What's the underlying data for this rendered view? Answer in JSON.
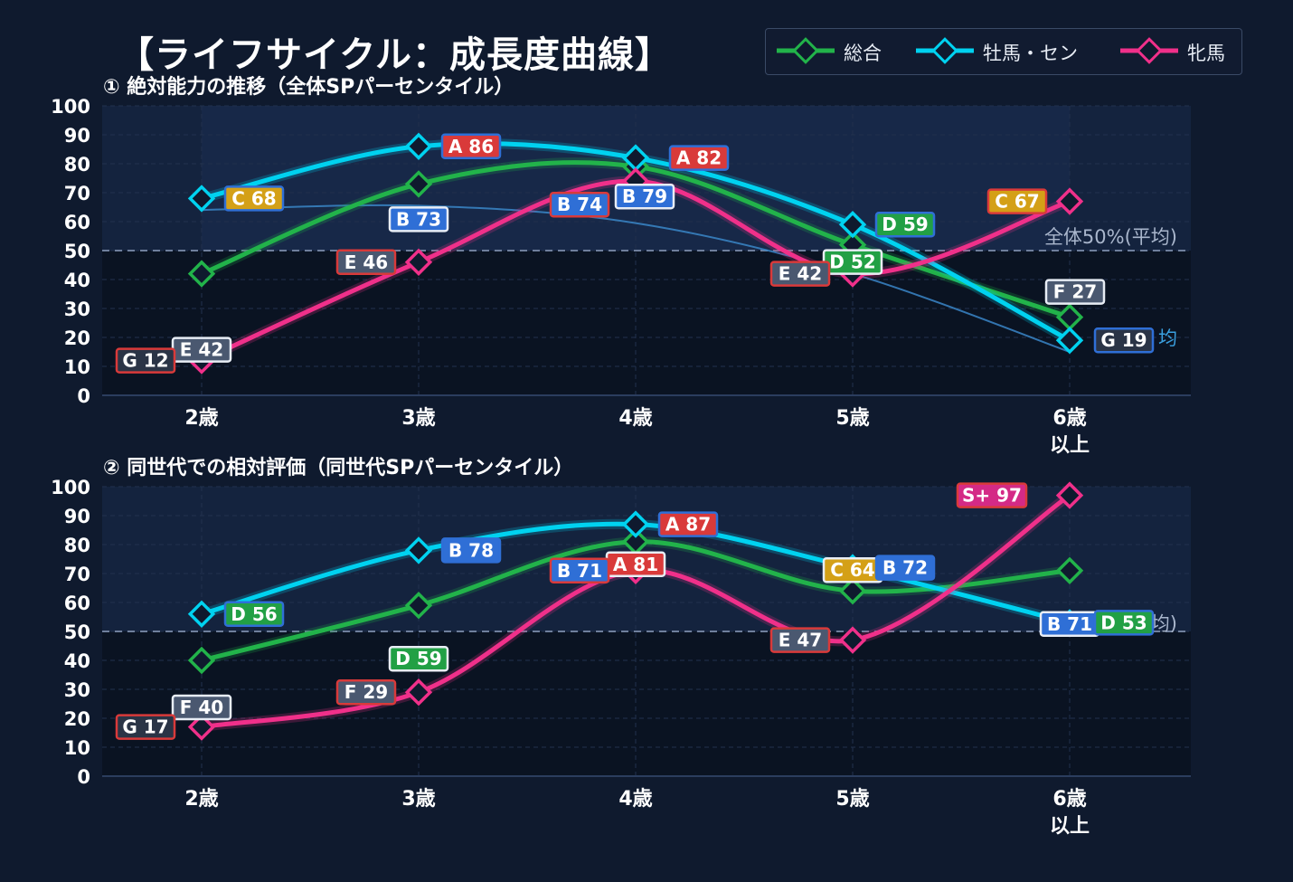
{
  "title": "【ライフサイクル：成長度曲線】",
  "legend": [
    {
      "name": "総合",
      "color": "#22b34a"
    },
    {
      "name": "牡馬・セン",
      "color": "#00d2f0"
    },
    {
      "name": "牝馬",
      "color": "#f0308a"
    }
  ],
  "chart_data": [
    {
      "type": "line",
      "title": "① 絶対能力の推移（全体SPパーセンタイル）",
      "categories": [
        [
          "2歳"
        ],
        [
          "3歳"
        ],
        [
          "4歳"
        ],
        [
          "5歳"
        ],
        [
          "6歳",
          "以上"
        ]
      ],
      "ylim": [
        0,
        100
      ],
      "yticks": [
        0,
        10,
        20,
        30,
        40,
        50,
        60,
        70,
        80,
        90,
        100
      ],
      "reference_line": {
        "value": 50,
        "label": "全体50%(平均)"
      },
      "partial_label": "均",
      "series": [
        {
          "name": "総合",
          "color": "#22b34a",
          "values": [
            42,
            73,
            79,
            52,
            27
          ],
          "grades": [
            "E",
            "B",
            "B",
            "D",
            "F"
          ]
        },
        {
          "name": "牡馬・セン",
          "color": "#00d2f0",
          "values": [
            68,
            86,
            82,
            59,
            19
          ],
          "grades": [
            "C",
            "A",
            "A",
            "D",
            "G"
          ]
        },
        {
          "name": "牝馬",
          "color": "#f0308a",
          "values": [
            12,
            46,
            74,
            42,
            67
          ],
          "grades": [
            "G",
            "E",
            "B",
            "E",
            "C"
          ]
        }
      ]
    },
    {
      "type": "line",
      "title": "② 同世代での相対評価（同世代SPパーセンタイル）",
      "categories": [
        [
          "2歳"
        ],
        [
          "3歳"
        ],
        [
          "4歳"
        ],
        [
          "5歳"
        ],
        [
          "6歳",
          "以上"
        ]
      ],
      "ylim": [
        0,
        100
      ],
      "yticks": [
        0,
        10,
        20,
        30,
        40,
        50,
        60,
        70,
        80,
        90,
        100
      ],
      "reference_line": {
        "value": 50,
        "label": ""
      },
      "partial_label": "SP　均)",
      "series": [
        {
          "name": "総合",
          "color": "#22b34a",
          "values": [
            40,
            59,
            81,
            64,
            71
          ],
          "grades": [
            "F",
            "D",
            "A",
            "C",
            "B"
          ]
        },
        {
          "name": "牡馬・セン",
          "color": "#00d2f0",
          "values": [
            56,
            78,
            87,
            72,
            53
          ],
          "grades": [
            "D",
            "B",
            "A",
            "B",
            "D"
          ]
        },
        {
          "name": "牝馬",
          "color": "#f0308a",
          "values": [
            17,
            29,
            71,
            47,
            97
          ],
          "grades": [
            "G",
            "F",
            "B",
            "E",
            "S+"
          ]
        }
      ]
    }
  ]
}
